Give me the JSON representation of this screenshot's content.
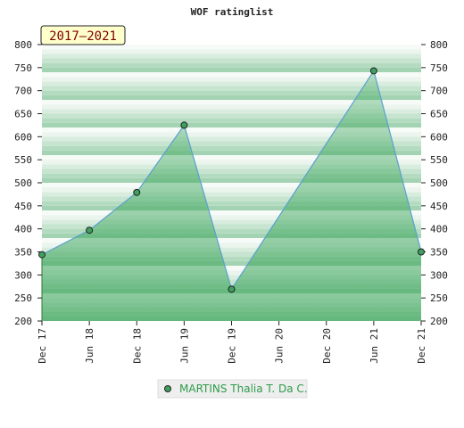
{
  "chart_data": {
    "type": "area",
    "title": "WOF ratinglist",
    "badge": "2017–2021",
    "xlabel": "",
    "ylabel": "",
    "x_ticks": [
      "Dec 17",
      "Jun 18",
      "Dec 18",
      "Jun 19",
      "Dec 19",
      "Jun 20",
      "Dec 20",
      "Jun 21",
      "Dec 21"
    ],
    "ylim": [
      200,
      800
    ],
    "y_ticks": [
      200,
      250,
      300,
      350,
      400,
      450,
      500,
      550,
      600,
      650,
      700,
      750,
      800
    ],
    "series": [
      {
        "name": "MARTINS Thalia T. Da C.",
        "points": [
          {
            "x": "Dec 17",
            "y": 344
          },
          {
            "x": "Jun 18",
            "y": 397
          },
          {
            "x": "Dec 18",
            "y": 479
          },
          {
            "x": "Jun 19",
            "y": 625
          },
          {
            "x": "Dec 19",
            "y": 269
          },
          {
            "x": "Jun 21",
            "y": 743
          },
          {
            "x": "Dec 21",
            "y": 350
          }
        ]
      }
    ],
    "legend_position": "bottom-center",
    "colors": {
      "line": "#5aa0d0",
      "area": "#3aa55a",
      "marker": "#3f9f5f",
      "band_dark": "#b6ddc2",
      "band_light": "#f4faf5",
      "badge_bg": "#ffffcc"
    }
  }
}
